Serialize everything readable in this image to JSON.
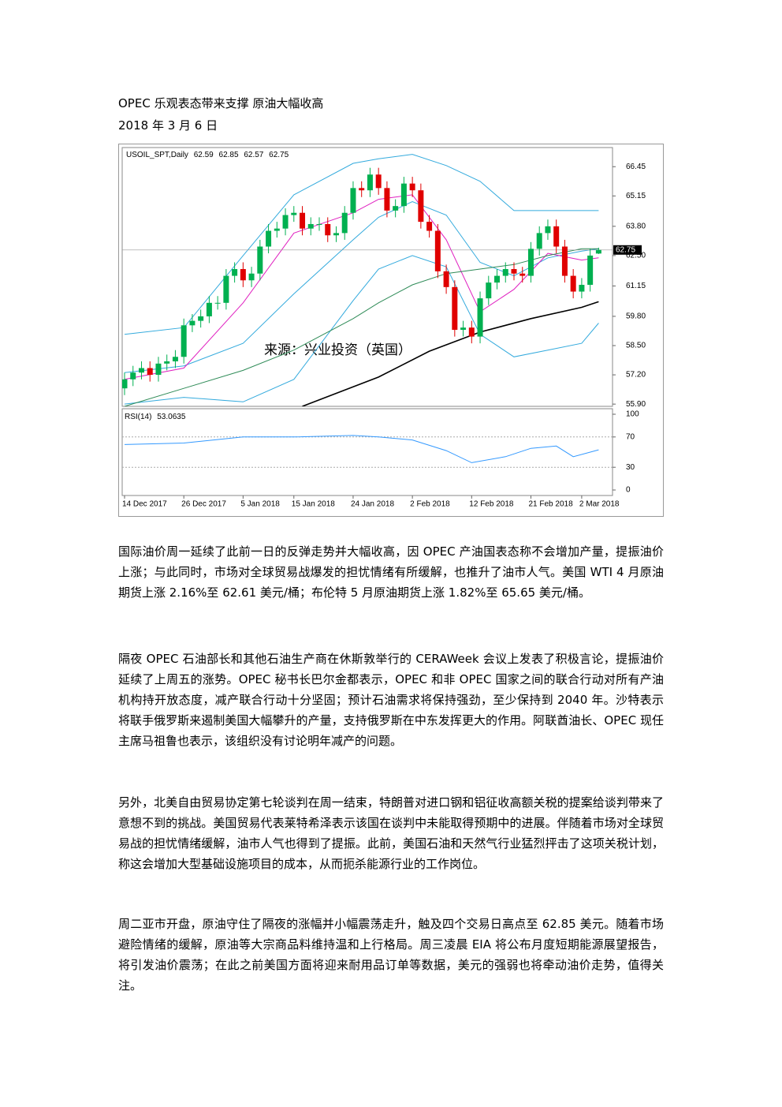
{
  "title": "OPEC 乐观表态带来支撑  原油大幅收高",
  "date": "2018 年 3 月 6 日",
  "paragraphs": [
    "国际油价周一延续了此前一日的反弹走势并大幅收高，因 OPEC 产油国表态称不会增加产量，提振油价上涨；与此同时，市场对全球贸易战爆发的担忧情绪有所缓解，也推升了油市人气。美国 WTI 4 月原油期货上涨 2.16%至 62.61 美元/桶；布伦特 5 月原油期货上涨 1.82%至 65.65 美元/桶。",
    "隔夜 OPEC 石油部长和其他石油生产商在休斯敦举行的 CERAWeek 会议上发表了积极言论，提振油价延续了上周五的涨势。OPEC 秘书长巴尔金都表示，OPEC 和非 OPEC 国家之间的联合行动对所有产油机构持开放态度，减产联合行动十分坚固；预计石油需求将保持强劲，至少保持到 2040 年。沙特表示将联手俄罗斯来遏制美国大幅攀升的产量，支持俄罗斯在中东发挥更大的作用。阿联酋油长、OPEC 现任主席马祖鲁也表示，该组织没有讨论明年减产的问题。",
    "另外，北美自由贸易协定第七轮谈判在周一结束，特朗普对进口钢和铝征收高额关税的提案给谈判带来了意想不到的挑战。美国贸易代表莱特希泽表示该国在谈判中未能取得预期中的进展。伴随着市场对全球贸易战的担忧情绪缓解，油市人气也得到了提振。此前，美国石油和天然气行业猛烈抨击了这项关税计划，称这会增加大型基础设施项目的成本，从而扼杀能源行业的工作岗位。",
    "周二亚市开盘，原油守住了隔夜的涨幅并小幅震荡走升，触及四个交易日高点至 62.85 美元。随着市场避险情绪的缓解，原油等大宗商品料维持温和上行格局。周三凌晨 EIA 将公布月度短期能源展望报告，将引发油价震荡；在此之前美国方面将迎来耐用品订单等数据，美元的强弱也将牵动油价走势，值得关注。"
  ],
  "chart_data": {
    "type": "candlestick",
    "symbol": "USOIL_SPT,Daily",
    "up_color": "#00b050",
    "down_color": "#e00000",
    "open": [
      56.6,
      57.0,
      57.3,
      57.5,
      57.2,
      57.7,
      57.8,
      58.0,
      59.4,
      59.6,
      59.8,
      60.4,
      60.4,
      61.6,
      61.9,
      61.4,
      61.7,
      62.9,
      63.6,
      63.7,
      64.3,
      64.4,
      63.7,
      63.9,
      63.9,
      63.4,
      63.5,
      64.4,
      65.5,
      65.4,
      66.1,
      65.5,
      64.5,
      64.7,
      65.7,
      65.4,
      64.0,
      63.6,
      61.8,
      61.1,
      59.2,
      59.3,
      58.9,
      60.6,
      61.3,
      61.6,
      61.9,
      61.7,
      61.6,
      62.8,
      63.5,
      63.8,
      62.9,
      61.6,
      60.9,
      61.2,
      62.59
    ],
    "high": [
      57.3,
      57.6,
      57.8,
      57.8,
      58.0,
      58.1,
      58.3,
      59.7,
      59.9,
      60.1,
      60.7,
      60.7,
      61.9,
      62.2,
      62.2,
      62.0,
      63.2,
      63.9,
      64.0,
      64.6,
      64.7,
      64.7,
      64.2,
      64.2,
      64.2,
      63.8,
      64.7,
      65.8,
      65.8,
      66.4,
      66.4,
      65.8,
      65.0,
      66.0,
      66.0,
      65.7,
      64.3,
      63.9,
      62.1,
      61.4,
      59.6,
      59.6,
      60.9,
      61.6,
      61.9,
      62.2,
      62.2,
      62.0,
      63.1,
      63.8,
      64.1,
      64.1,
      63.2,
      61.9,
      61.5,
      62.8,
      62.85
    ],
    "low": [
      56.3,
      56.7,
      57.0,
      56.9,
      56.9,
      57.4,
      57.5,
      57.7,
      59.1,
      59.3,
      59.5,
      60.1,
      60.1,
      61.3,
      61.1,
      61.1,
      61.4,
      62.6,
      63.3,
      63.4,
      64.0,
      63.4,
      63.4,
      63.6,
      63.1,
      63.1,
      63.2,
      64.1,
      65.1,
      65.1,
      65.2,
      64.2,
      64.2,
      64.4,
      65.1,
      63.7,
      63.3,
      61.5,
      60.8,
      58.9,
      58.9,
      58.6,
      58.6,
      60.3,
      61.0,
      61.3,
      61.4,
      61.3,
      61.3,
      62.5,
      63.2,
      62.6,
      61.3,
      60.6,
      60.6,
      60.9,
      62.57
    ],
    "close": [
      57.0,
      57.3,
      57.5,
      57.2,
      57.7,
      57.8,
      58.0,
      59.4,
      59.6,
      59.8,
      60.4,
      60.4,
      61.6,
      61.9,
      61.4,
      61.7,
      62.9,
      63.6,
      63.7,
      64.3,
      64.4,
      63.7,
      63.9,
      63.9,
      63.4,
      63.5,
      64.4,
      65.5,
      65.4,
      66.1,
      65.5,
      64.5,
      64.7,
      65.7,
      65.4,
      64.0,
      63.6,
      61.8,
      61.1,
      59.2,
      59.3,
      58.9,
      60.6,
      61.3,
      61.6,
      61.9,
      61.7,
      61.6,
      62.8,
      63.5,
      63.8,
      62.9,
      61.6,
      60.9,
      61.2,
      62.5,
      62.75
    ],
    "xlim": [
      -0.28,
      57.64
    ],
    "ylim": [
      55.8,
      67.3
    ],
    "yticks": [
      {
        "value": 66.45,
        "label": "66.45"
      },
      {
        "value": 65.15,
        "label": "65.15"
      },
      {
        "value": 63.8,
        "label": "63.80"
      },
      {
        "value": 62.5,
        "label": "62.50"
      },
      {
        "value": 61.15,
        "label": "61.15"
      },
      {
        "value": 59.8,
        "label": "59.80"
      },
      {
        "value": 58.5,
        "label": "58.50"
      },
      {
        "value": 57.2,
        "label": "57.20"
      },
      {
        "value": 55.9,
        "label": "55.90"
      }
    ],
    "xticks": [
      {
        "value": 0,
        "label": "14 Dec 2017"
      },
      {
        "value": 7,
        "label": "26 Dec 2017"
      },
      {
        "value": 14,
        "label": "5 Jan 2018"
      },
      {
        "value": 20,
        "label": "15 Jan 2018"
      },
      {
        "value": 27,
        "label": "24 Jan 2018"
      },
      {
        "value": 34,
        "label": "2 Feb 2018"
      },
      {
        "value": 41,
        "label": "12 Feb 2018"
      },
      {
        "value": 48,
        "label": "21 Feb 2018"
      },
      {
        "value": 54,
        "label": "2 Mar 2018"
      }
    ],
    "lines": [
      {
        "color": "#33aadd",
        "x": [
          0,
          7,
          14,
          20,
          27,
          30,
          34,
          38,
          42,
          46,
          50,
          54,
          56
        ],
        "values": [
          59.0,
          59.3,
          62.5,
          65.2,
          66.6,
          66.8,
          67.0,
          66.5,
          65.8,
          64.5,
          64.5,
          64.5,
          64.5
        ]
      },
      {
        "color": "#33aadd",
        "x": [
          0,
          7,
          14,
          20,
          27,
          30,
          34,
          38,
          42,
          46,
          50,
          54,
          56
        ],
        "values": [
          55.9,
          56.2,
          56.0,
          57.0,
          60.5,
          61.9,
          62.5,
          62.0,
          59.0,
          58.0,
          58.3,
          58.6,
          59.5
        ]
      },
      {
        "color": "#33aadd",
        "x": [
          0,
          7,
          14,
          20,
          27,
          30,
          34,
          38,
          42,
          46,
          50,
          54,
          56
        ],
        "values": [
          57.3,
          57.6,
          58.6,
          60.8,
          63.2,
          64.2,
          64.9,
          64.3,
          62.2,
          61.6,
          62.4,
          62.7,
          62.8
        ]
      },
      {
        "color": "#e020c0",
        "x": [
          0,
          7,
          14,
          20,
          27,
          30,
          34,
          38,
          42,
          46,
          50,
          54,
          56
        ],
        "values": [
          57.0,
          57.5,
          60.4,
          63.5,
          64.4,
          65.0,
          65.2,
          63.2,
          60.0,
          61.0,
          62.6,
          62.3,
          62.4
        ]
      },
      {
        "color": "#2e8b57",
        "x": [
          0,
          7,
          14,
          20,
          27,
          30,
          34,
          38,
          42,
          46,
          50,
          54,
          56
        ],
        "values": [
          55.8,
          56.6,
          57.4,
          58.3,
          59.7,
          60.4,
          61.2,
          61.7,
          61.9,
          62.1,
          62.5,
          62.8,
          62.8
        ]
      },
      {
        "color": "#000000",
        "x": [
          21,
          30,
          36,
          42,
          48,
          54,
          56
        ],
        "values": [
          55.8,
          57.1,
          58.25,
          59.1,
          59.7,
          60.2,
          60.45
        ]
      }
    ],
    "annotation": "来源：兴业投资（英国）",
    "rsi": {
      "title": "RSI(14)",
      "color": "#3399ff",
      "x": [
        0,
        7,
        14,
        20,
        27,
        30,
        34,
        38,
        41,
        45,
        48,
        51,
        53,
        56
      ],
      "values": [
        60,
        62,
        70,
        70,
        72,
        70,
        66,
        52,
        36,
        44,
        55,
        58,
        44,
        53.0635
      ],
      "ylim": [
        0,
        100
      ],
      "yticks": [
        100,
        70,
        30,
        0
      ]
    }
  }
}
